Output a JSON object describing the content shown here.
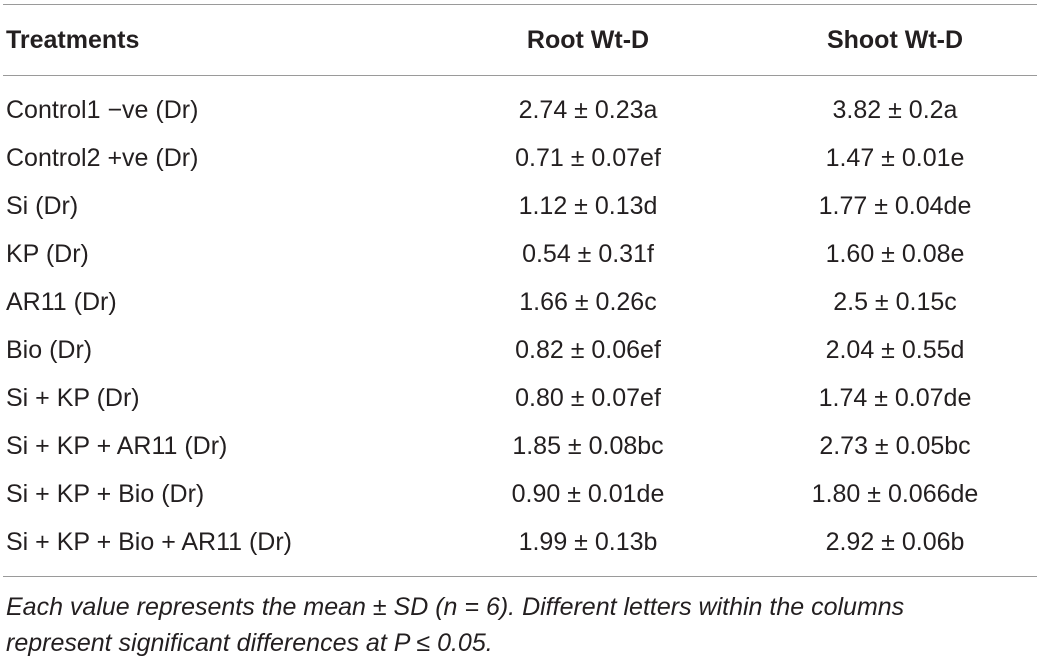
{
  "table": {
    "headers": [
      "Treatments",
      "Root Wt-D",
      "Shoot Wt-D"
    ],
    "rows": [
      [
        "Control1 −ve (Dr)",
        "2.74 ± 0.23a",
        "3.82 ± 0.2a"
      ],
      [
        "Control2 +ve (Dr)",
        "0.71 ± 0.07ef",
        "1.47 ± 0.01e"
      ],
      [
        "Si (Dr)",
        "1.12 ± 0.13d",
        "1.77 ± 0.04de"
      ],
      [
        "KP (Dr)",
        "0.54 ± 0.31f",
        "1.60 ± 0.08e"
      ],
      [
        "AR11 (Dr)",
        "1.66 ± 0.26c",
        "2.5 ± 0.15c"
      ],
      [
        "Bio (Dr)",
        "0.82 ± 0.06ef",
        "2.04 ± 0.55d"
      ],
      [
        "Si + KP (Dr)",
        "0.80 ± 0.07ef",
        "1.74 ± 0.07de"
      ],
      [
        "Si + KP + AR11 (Dr)",
        "1.85 ± 0.08bc",
        "2.73 ± 0.05bc"
      ],
      [
        "Si + KP + Bio (Dr)",
        "0.90 ± 0.01de",
        "1.80 ± 0.066de"
      ],
      [
        "Si + KP + Bio + AR11 (Dr)",
        "1.99 ± 0.13b",
        "2.92 ± 0.06b"
      ]
    ]
  },
  "footnote": {
    "line1": "Each value represents the mean ± SD (n = 6). Different letters within the columns",
    "line2": "represent significant differences at P ≤ 0.05."
  }
}
